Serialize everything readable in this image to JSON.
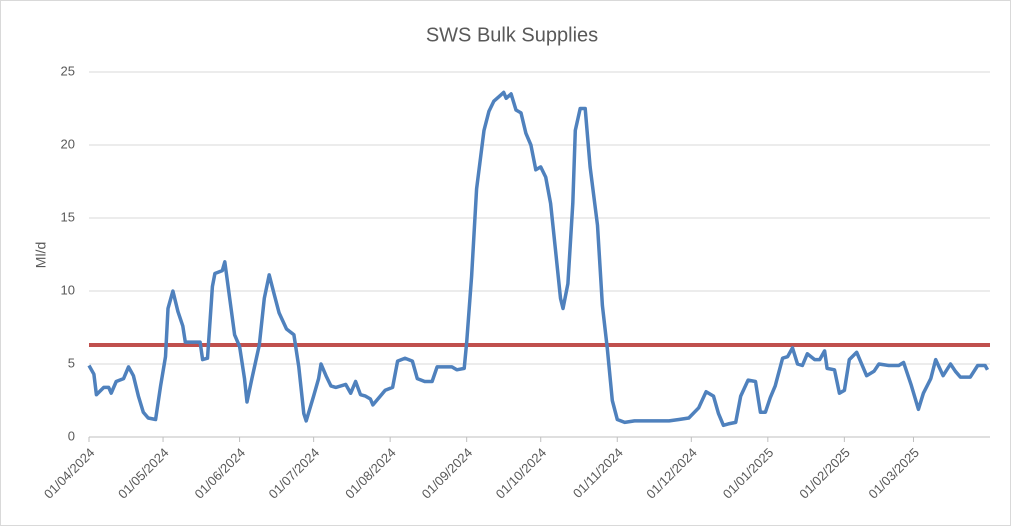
{
  "chart_data": {
    "type": "line",
    "title": "SWS Bulk Supplies",
    "y_label": "Ml/d",
    "x": [
      "01/04/2024",
      "03/04/2024",
      "04/04/2024",
      "07/04/2024",
      "09/04/2024",
      "10/04/2024",
      "12/04/2024",
      "15/04/2024",
      "17/04/2024",
      "19/04/2024",
      "21/04/2024",
      "23/04/2024",
      "25/04/2024",
      "28/04/2024",
      "30/04/2024",
      "02/05/2024",
      "03/05/2024",
      "05/05/2024",
      "07/05/2024",
      "09/05/2024",
      "10/05/2024",
      "13/05/2024",
      "16/05/2024",
      "17/05/2024",
      "19/05/2024",
      "21/05/2024",
      "22/05/2024",
      "25/05/2024",
      "26/05/2024",
      "28/05/2024",
      "30/05/2024",
      "01/06/2024",
      "03/06/2024",
      "04/06/2024",
      "06/06/2024",
      "09/06/2024",
      "11/06/2024",
      "13/06/2024",
      "15/06/2024",
      "17/06/2024",
      "20/06/2024",
      "23/06/2024",
      "25/06/2024",
      "27/06/2024",
      "28/06/2024",
      "01/07/2024",
      "03/07/2024",
      "04/07/2024",
      "06/07/2024",
      "08/07/2024",
      "10/07/2024",
      "12/07/2024",
      "14/07/2024",
      "16/07/2024",
      "18/07/2024",
      "20/07/2024",
      "22/07/2024",
      "24/07/2024",
      "25/07/2024",
      "28/07/2024",
      "30/07/2024",
      "02/08/2024",
      "04/08/2024",
      "07/08/2024",
      "10/08/2024",
      "12/08/2024",
      "15/08/2024",
      "18/08/2024",
      "20/08/2024",
      "24/08/2024",
      "26/08/2024",
      "28/08/2024",
      "31/08/2024",
      "01/09/2024",
      "03/09/2024",
      "05/09/2024",
      "08/09/2024",
      "10/09/2024",
      "12/09/2024",
      "14/09/2024",
      "16/09/2024",
      "17/09/2024",
      "19/09/2024",
      "21/09/2024",
      "23/09/2024",
      "25/09/2024",
      "27/09/2024",
      "29/09/2024",
      "01/10/2024",
      "03/10/2024",
      "05/10/2024",
      "07/10/2024",
      "09/10/2024",
      "10/10/2024",
      "12/10/2024",
      "14/10/2024",
      "15/10/2024",
      "17/10/2024",
      "19/10/2024",
      "21/10/2024",
      "24/10/2024",
      "26/10/2024",
      "28/10/2024",
      "30/10/2024",
      "01/11/2024",
      "04/11/2024",
      "08/11/2024",
      "12/11/2024",
      "18/11/2024",
      "22/11/2024",
      "26/11/2024",
      "30/11/2024",
      "04/12/2024",
      "07/12/2024",
      "10/12/2024",
      "12/12/2024",
      "14/12/2024",
      "16/12/2024",
      "19/12/2024",
      "21/12/2024",
      "24/12/2024",
      "27/12/2024",
      "29/12/2024",
      "31/12/2024",
      "02/01/2025",
      "04/01/2025",
      "07/01/2025",
      "09/01/2025",
      "11/01/2025",
      "13/01/2025",
      "15/01/2025",
      "17/01/2025",
      "20/01/2025",
      "22/01/2025",
      "24/01/2025",
      "25/01/2025",
      "28/01/2025",
      "30/01/2025",
      "01/02/2025",
      "03/02/2025",
      "06/02/2025",
      "10/02/2025",
      "13/02/2025",
      "15/02/2025",
      "19/02/2025",
      "23/02/2025",
      "25/02/2025",
      "28/02/2025",
      "03/03/2025",
      "05/03/2025",
      "08/03/2025",
      "10/03/2025",
      "13/03/2025",
      "16/03/2025",
      "18/03/2025",
      "20/03/2025",
      "24/03/2025",
      "27/03/2025",
      "30/03/2025",
      "31/03/2025"
    ],
    "series": [
      {
        "color": "#4f81bd",
        "values": [
          4.9,
          4.3,
          2.9,
          3.4,
          3.4,
          3.0,
          3.8,
          4.0,
          4.8,
          4.2,
          2.8,
          1.7,
          1.3,
          1.2,
          3.5,
          5.5,
          8.8,
          10.0,
          8.6,
          7.6,
          6.5,
          6.5,
          6.5,
          5.3,
          5.4,
          10.3,
          11.2,
          11.4,
          12.0,
          9.5,
          7.0,
          6.2,
          4.0,
          2.4,
          4.0,
          6.3,
          9.5,
          11.1,
          9.8,
          8.5,
          7.4,
          7.0,
          4.8,
          1.6,
          1.1,
          2.8,
          4.0,
          5.0,
          4.2,
          3.5,
          3.4,
          3.5,
          3.6,
          3.0,
          3.8,
          2.9,
          2.8,
          2.6,
          2.2,
          2.8,
          3.2,
          3.4,
          5.2,
          5.4,
          5.2,
          4.0,
          3.8,
          3.8,
          4.8,
          4.8,
          4.8,
          4.6,
          4.7,
          6.5,
          11.0,
          17.0,
          21.0,
          22.3,
          23.0,
          23.3,
          23.6,
          23.2,
          23.5,
          22.4,
          22.2,
          20.8,
          20.0,
          18.3,
          18.5,
          17.8,
          16.0,
          12.8,
          9.5,
          8.8,
          10.5,
          16.0,
          21.0,
          22.5,
          22.5,
          18.5,
          14.5,
          9.0,
          6.0,
          2.5,
          1.2,
          1.0,
          1.1,
          1.1,
          1.1,
          1.1,
          1.2,
          1.3,
          2.0,
          3.1,
          2.8,
          1.6,
          0.8,
          0.9,
          1.0,
          2.8,
          3.9,
          3.8,
          1.7,
          1.7,
          2.7,
          3.5,
          5.4,
          5.5,
          6.1,
          5.0,
          4.9,
          5.7,
          5.3,
          5.3,
          5.9,
          4.7,
          4.6,
          3.0,
          3.2,
          5.3,
          5.8,
          4.2,
          4.5,
          5.0,
          4.9,
          4.9,
          5.1,
          3.6,
          1.9,
          3.0,
          4.0,
          5.3,
          4.2,
          5.0,
          4.5,
          4.1,
          4.1,
          4.9,
          4.9,
          4.6
        ]
      }
    ],
    "reference_line": {
      "value": 6.3,
      "color": "#c0504d"
    },
    "xlim": [
      "01/04/2024",
      "01/04/2025"
    ],
    "xticks": [
      "01/04/2024",
      "01/05/2024",
      "01/06/2024",
      "01/07/2024",
      "01/08/2024",
      "01/09/2024",
      "01/10/2024",
      "01/11/2024",
      "01/12/2024",
      "01/01/2025",
      "01/02/2025",
      "01/03/2025"
    ],
    "ylim": [
      0,
      25
    ],
    "yticks": [
      0,
      5,
      10,
      15,
      20,
      25
    ],
    "grid": true
  }
}
